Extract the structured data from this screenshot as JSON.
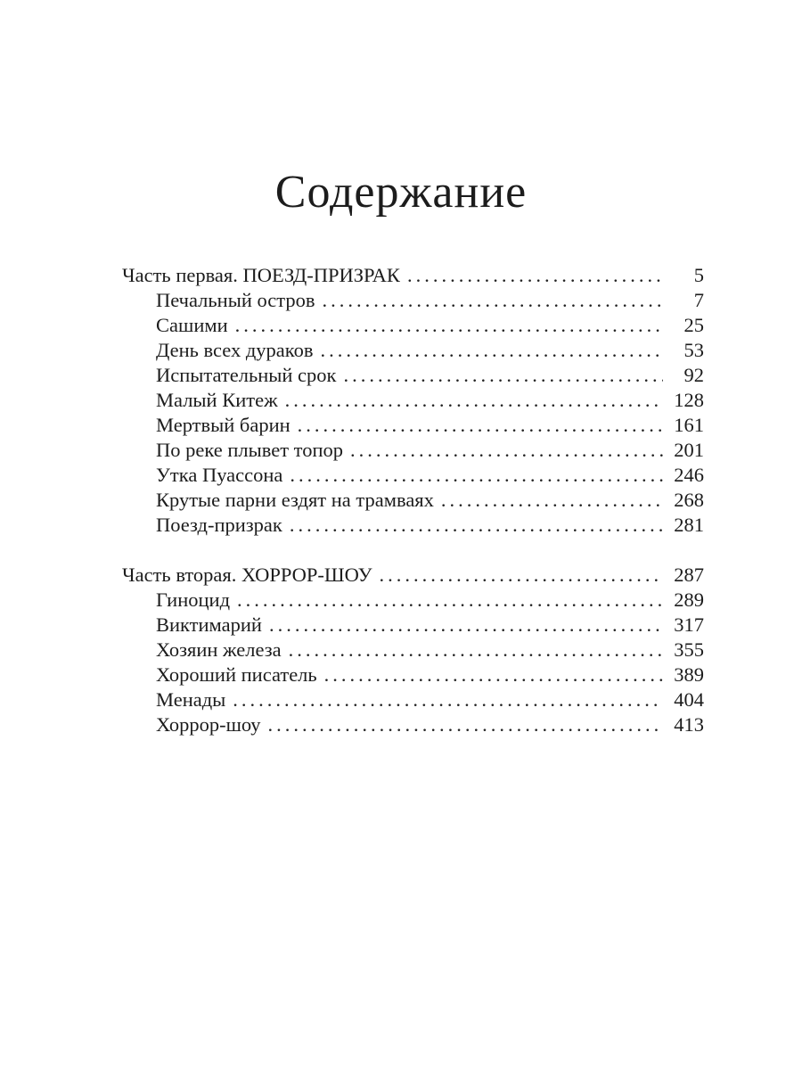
{
  "page": {
    "title": "Содержание"
  },
  "toc": {
    "sections": [
      {
        "heading": {
          "label": "Часть первая. ПОЕЗД-ПРИЗРАК",
          "page": "5"
        },
        "items": [
          {
            "label": "Печальный остров",
            "page": "7"
          },
          {
            "label": "Сашими",
            "page": "25"
          },
          {
            "label": "День всех дураков",
            "page": "53"
          },
          {
            "label": "Испытательный срок",
            "page": "92"
          },
          {
            "label": "Малый Китеж",
            "page": "128"
          },
          {
            "label": "Мертвый барин",
            "page": "161"
          },
          {
            "label": "По реке плывет топор",
            "page": "201"
          },
          {
            "label": "Утка Пуассона",
            "page": "246"
          },
          {
            "label": "Крутые парни ездят на трамваях",
            "page": "268"
          },
          {
            "label": "Поезд-призрак",
            "page": "281"
          }
        ]
      },
      {
        "heading": {
          "label": "Часть вторая. ХОРРОР-ШОУ",
          "page": "287"
        },
        "items": [
          {
            "label": "Гиноцид",
            "page": "289"
          },
          {
            "label": "Виктимарий",
            "page": "317"
          },
          {
            "label": "Хозяин железа",
            "page": "355"
          },
          {
            "label": "Хороший писатель",
            "page": "389"
          },
          {
            "label": "Менады",
            "page": "404"
          },
          {
            "label": "Хоррор-шоу",
            "page": "413"
          }
        ]
      }
    ]
  }
}
